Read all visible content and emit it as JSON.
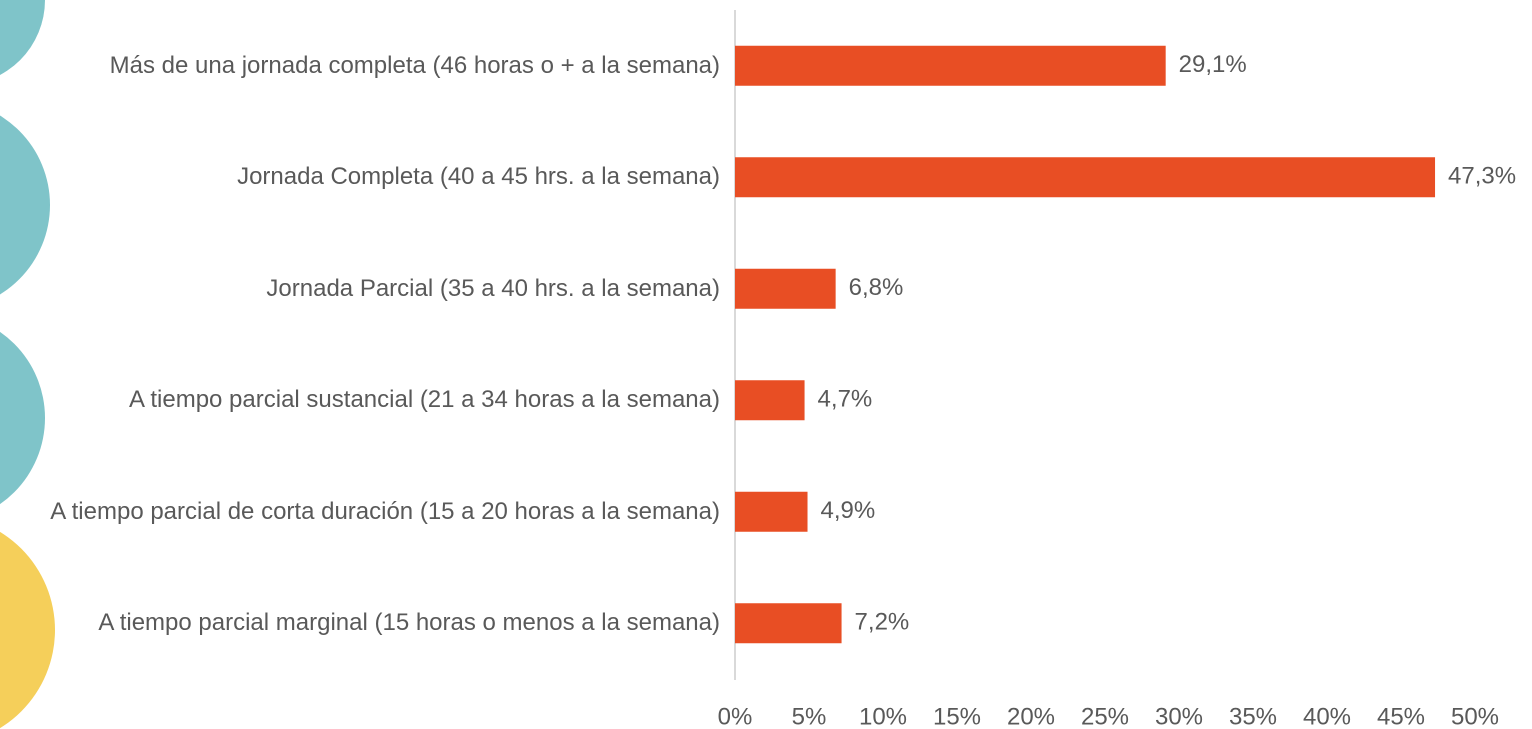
{
  "chart_data": {
    "type": "hbar",
    "categories": [
      "Más de una jornada completa (46 horas o + a la semana)",
      "Jornada Completa (40 a 45 hrs. a la semana)",
      "Jornada Parcial (35 a  40 hrs. a la semana)",
      "A tiempo parcial sustancial (21 a 34 horas a la semana)",
      "A tiempo parcial de corta duración (15 a 20 horas a la semana)",
      "A tiempo parcial marginal (15 horas o menos a la semana)"
    ],
    "values": [
      29.1,
      47.3,
      6.8,
      4.7,
      4.9,
      7.2
    ],
    "value_labels": [
      "29,1%",
      "47,3%",
      "6,8%",
      "4,7%",
      "4,9%",
      "7,2%"
    ],
    "color": "#e84e24",
    "xlim": [
      0,
      50
    ],
    "xticks": [
      {
        "value": 0,
        "label": "0%"
      },
      {
        "value": 5,
        "label": "5%"
      },
      {
        "value": 10,
        "label": "10%"
      },
      {
        "value": 15,
        "label": "15%"
      },
      {
        "value": 20,
        "label": "20%"
      },
      {
        "value": 25,
        "label": "25%"
      },
      {
        "value": 30,
        "label": "30%"
      },
      {
        "value": 35,
        "label": "35%"
      },
      {
        "value": 40,
        "label": "40%"
      },
      {
        "value": 45,
        "label": "45%"
      },
      {
        "value": 50,
        "label": "50%"
      }
    ],
    "grid": false
  }
}
